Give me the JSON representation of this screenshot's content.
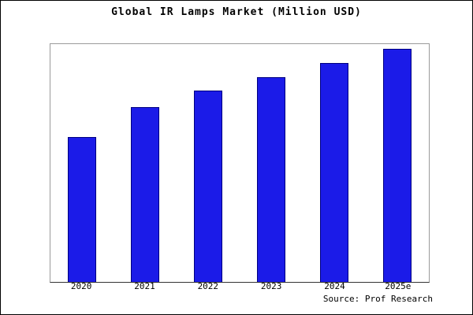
{
  "title": "Global IR Lamps Market (Million USD)",
  "source": "Source: Prof Research",
  "colors": {
    "bar_fill": "#1b1be8",
    "bar_border": "#000080",
    "plot_border": "#9a9a9a",
    "background": "#ffffff"
  },
  "chart_data": {
    "type": "bar",
    "title": "Global IR Lamps Market (Million USD)",
    "categories": [
      "2020",
      "2021",
      "2022",
      "2023",
      "2024",
      "2025e"
    ],
    "values": [
      62,
      75,
      82,
      88,
      94,
      100
    ],
    "xlabel": "",
    "ylabel": "",
    "ylim": [
      0,
      100
    ],
    "grid": false,
    "legend": false,
    "annotations": [
      "Source: Prof Research"
    ]
  }
}
